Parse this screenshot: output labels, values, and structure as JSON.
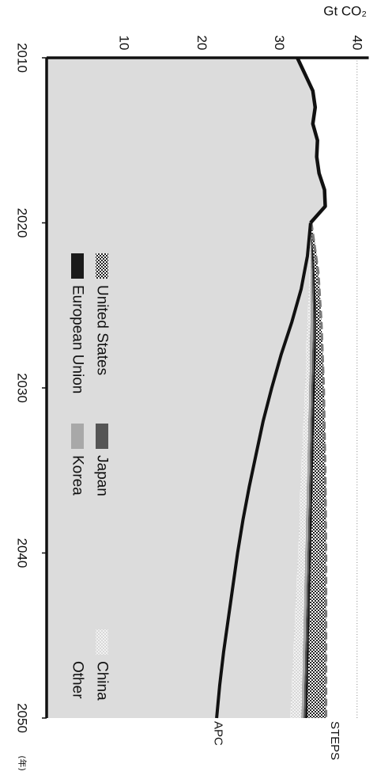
{
  "chart_data": {
    "type": "area",
    "unit": "Gt CO₂",
    "x_unit_note": "(年)",
    "x": [
      2010,
      2011,
      2012,
      2013,
      2014,
      2015,
      2016,
      2017,
      2018,
      2019,
      2020,
      2021,
      2022,
      2023,
      2024,
      2025,
      2026,
      2027,
      2028,
      2029,
      2030,
      2031,
      2032,
      2033,
      2034,
      2035,
      2036,
      2037,
      2038,
      2039,
      2040,
      2041,
      2042,
      2043,
      2044,
      2045,
      2046,
      2047,
      2048,
      2049,
      2050
    ],
    "xticks": [
      2010,
      2020,
      2030,
      2040,
      2050
    ],
    "yticks": [
      10,
      20,
      30,
      40
    ],
    "ylim": [
      0,
      41.5
    ],
    "xlim": [
      2010,
      2050
    ],
    "grid": true,
    "historical": {
      "x": [
        2010,
        2011,
        2012,
        2013,
        2014,
        2015,
        2016,
        2017,
        2018,
        2019,
        2020
      ],
      "values": [
        32.3,
        33.3,
        34.3,
        34.6,
        34.3,
        34.9,
        34.8,
        35.1,
        35.8,
        35.9,
        34.0
      ]
    },
    "series": [
      {
        "name": "Other",
        "color": "#dcdcdc",
        "pattern": "none",
        "values": [
          32.3,
          33.3,
          34.3,
          34.6,
          34.3,
          34.9,
          34.8,
          35.1,
          35.8,
          35.9,
          33.9,
          33.9,
          33.9,
          33.9,
          33.8,
          33.7,
          33.6,
          33.5,
          33.4,
          33.4,
          33.3,
          33.2,
          33.1,
          33.0,
          32.9,
          32.8,
          32.7,
          32.6,
          32.6,
          32.5,
          32.4,
          32.3,
          32.2,
          32.1,
          32.0,
          31.9,
          31.8,
          31.7,
          31.6,
          31.5,
          31.4
        ]
      },
      {
        "name": "China",
        "color": "#b8b8b8",
        "pattern": "dots-fine",
        "values": [
          32.3,
          33.3,
          34.3,
          34.6,
          34.3,
          34.9,
          34.8,
          35.1,
          35.8,
          35.9,
          34.0,
          34.0,
          34.0,
          34.0,
          34.0,
          34.0,
          34.0,
          33.9,
          33.9,
          33.9,
          33.8,
          33.8,
          33.7,
          33.7,
          33.6,
          33.6,
          33.5,
          33.5,
          33.4,
          33.4,
          33.3,
          33.3,
          33.2,
          33.2,
          33.1,
          33.1,
          33.0,
          33.0,
          32.9,
          32.9,
          32.8
        ]
      },
      {
        "name": "Korea",
        "color": "#a8a8a8",
        "pattern": "none",
        "values": [
          32.3,
          33.3,
          34.3,
          34.6,
          34.3,
          34.9,
          34.8,
          35.1,
          35.8,
          35.9,
          34.0,
          34.1,
          34.1,
          34.2,
          34.2,
          34.3,
          34.3,
          34.3,
          34.2,
          34.2,
          34.1,
          34.1,
          34.0,
          34.0,
          33.9,
          33.9,
          33.8,
          33.8,
          33.7,
          33.7,
          33.6,
          33.6,
          33.5,
          33.5,
          33.4,
          33.4,
          33.3,
          33.3,
          33.2,
          33.2,
          33.1
        ]
      },
      {
        "name": "Japan",
        "color": "#555555",
        "pattern": "none",
        "values": [
          32.3,
          33.3,
          34.3,
          34.6,
          34.3,
          34.9,
          34.8,
          35.1,
          35.8,
          35.9,
          34.0,
          34.1,
          34.2,
          34.3,
          34.4,
          34.4,
          34.5,
          34.5,
          34.4,
          34.4,
          34.3,
          34.3,
          34.2,
          34.2,
          34.1,
          34.1,
          34.0,
          34.0,
          33.9,
          33.9,
          33.8,
          33.8,
          33.7,
          33.7,
          33.6,
          33.6,
          33.5,
          33.5,
          33.4,
          33.4,
          33.3
        ]
      },
      {
        "name": "European Union",
        "color": "#1a1a1a",
        "pattern": "none",
        "values": [
          32.3,
          33.3,
          34.3,
          34.6,
          34.3,
          34.9,
          34.8,
          35.1,
          35.8,
          35.9,
          34.0,
          34.2,
          34.4,
          34.5,
          34.6,
          34.7,
          34.7,
          34.7,
          34.7,
          34.6,
          34.6,
          34.5,
          34.5,
          34.4,
          34.4,
          34.3,
          34.3,
          34.2,
          34.2,
          34.1,
          34.1,
          34.0,
          34.0,
          33.9,
          33.9,
          33.8,
          33.8,
          33.7,
          33.7,
          33.6,
          33.6
        ]
      },
      {
        "name": "United States",
        "color": "#8c8c8c",
        "pattern": "dots-dense",
        "values": [
          32.3,
          33.3,
          34.3,
          34.6,
          34.3,
          34.9,
          34.8,
          35.1,
          35.8,
          35.9,
          34.1,
          34.5,
          34.8,
          35.0,
          35.2,
          35.3,
          35.4,
          35.5,
          35.6,
          35.7,
          35.7,
          35.8,
          35.8,
          35.9,
          35.9,
          35.9,
          36.0,
          36.0,
          36.0,
          36.0,
          36.0,
          36.0,
          36.0,
          36.0,
          36.0,
          36.0,
          36.0,
          36.0,
          36.0,
          36.0,
          36.0
        ]
      }
    ],
    "lines": [
      {
        "name": "STEPS",
        "style": "dashed",
        "color": "#7a7a7a",
        "x": [
          2020,
          2023,
          2026,
          2030,
          2035,
          2040,
          2045,
          2050
        ],
        "values": [
          34.1,
          35.0,
          35.4,
          35.7,
          35.9,
          36.0,
          36.0,
          36.0
        ]
      },
      {
        "name": "APC",
        "style": "solid",
        "color": "#111111",
        "x": [
          2020,
          2022,
          2024,
          2026,
          2028,
          2030,
          2032,
          2034,
          2036,
          2038,
          2040,
          2042,
          2044,
          2046,
          2048,
          2050
        ],
        "values": [
          34.0,
          33.6,
          32.8,
          31.6,
          30.2,
          29.0,
          27.9,
          27.0,
          26.1,
          25.3,
          24.6,
          24.0,
          23.4,
          22.8,
          22.3,
          21.9
        ]
      }
    ],
    "legend": [
      {
        "label": "United States",
        "swatch": "dots-dense"
      },
      {
        "label": "European Union",
        "swatch": "solid-black"
      },
      {
        "label": "Japan",
        "swatch": "solid-darkgray"
      },
      {
        "label": "Korea",
        "swatch": "solid-gray"
      },
      {
        "label": "China",
        "swatch": "dots-fine"
      },
      {
        "label": "Other",
        "swatch": "solid-lightgray"
      }
    ]
  }
}
